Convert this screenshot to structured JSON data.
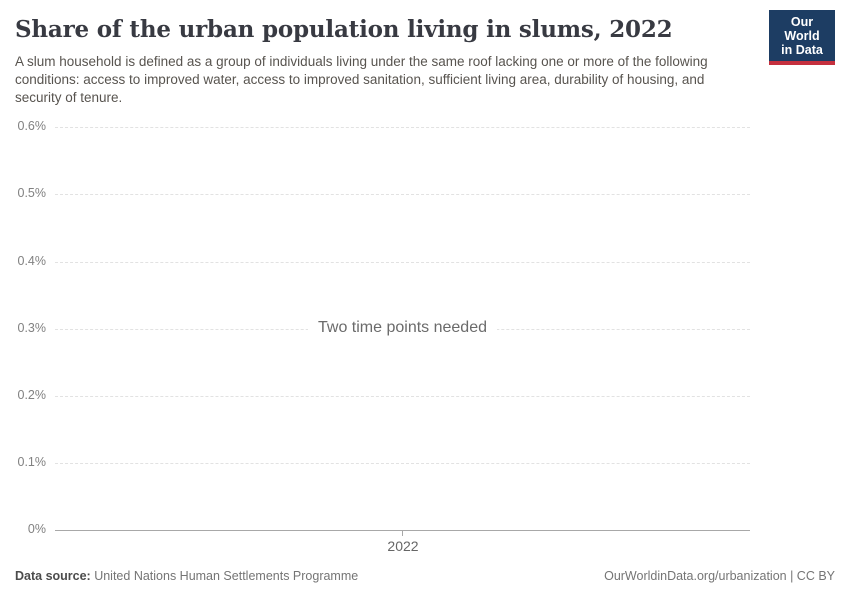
{
  "header": {
    "title": "Share of the urban population living in slums, 2022",
    "subtitle": "A slum household is defined as a group of individuals living under the same roof lacking one or more of the following conditions: access to improved water, access to improved sanitation, sufficient living area, durability of housing, and security of tenure."
  },
  "logo": {
    "line1": "Our World",
    "line2": "in Data",
    "bg_color": "#1d3d63",
    "accent_color": "#c5303e"
  },
  "chart_data": {
    "type": "line",
    "title": "Share of the urban population living in slums, 2022",
    "series": [],
    "no_data_message": "Two time points needed",
    "xlabel": "",
    "ylabel": "",
    "xticks": [
      {
        "label": "2022",
        "value": 2022
      }
    ],
    "yticks": [
      {
        "label": "0.6%",
        "value": 0.6
      },
      {
        "label": "0.5%",
        "value": 0.5
      },
      {
        "label": "0.4%",
        "value": 0.4
      },
      {
        "label": "0.3%",
        "value": 0.3
      },
      {
        "label": "0.2%",
        "value": 0.2
      },
      {
        "label": "0.1%",
        "value": 0.1
      },
      {
        "label": "0%",
        "value": 0
      }
    ],
    "ylim": [
      0,
      0.6
    ],
    "grid": "horizontal-dashed",
    "legend_position": "none"
  },
  "colors": {
    "grid_line": "#e2e2e2",
    "axis_line": "#a8a8a8",
    "tick_label": "#818181",
    "note_text": "#6b6b6b"
  },
  "footer": {
    "datasource_label": "Data source:",
    "datasource_value": " United Nations Human Settlements Programme",
    "right_text": "OurWorldinData.org/urbanization | CC BY"
  }
}
